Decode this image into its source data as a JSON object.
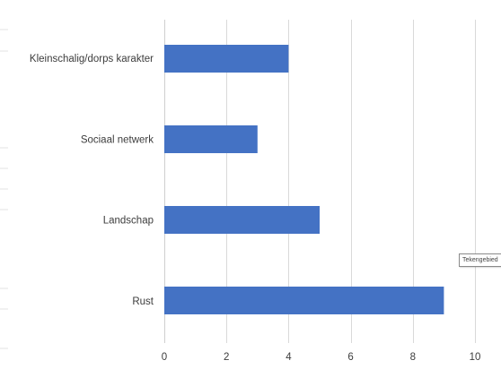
{
  "chart_data": {
    "type": "bar",
    "orientation": "horizontal",
    "categories": [
      "Kleinschalig/dorps karakter",
      "Sociaal netwerk",
      "Landschap",
      "Rust"
    ],
    "values": [
      4,
      3,
      5,
      9
    ],
    "xlim": [
      0,
      10
    ],
    "x_ticks": [
      0,
      2,
      4,
      6,
      8,
      10
    ],
    "title": "",
    "xlabel": "",
    "ylabel": "",
    "bar_color": "#4472c4",
    "grid": "vertical"
  },
  "tooltip": {
    "text": "Tekengebied"
  }
}
